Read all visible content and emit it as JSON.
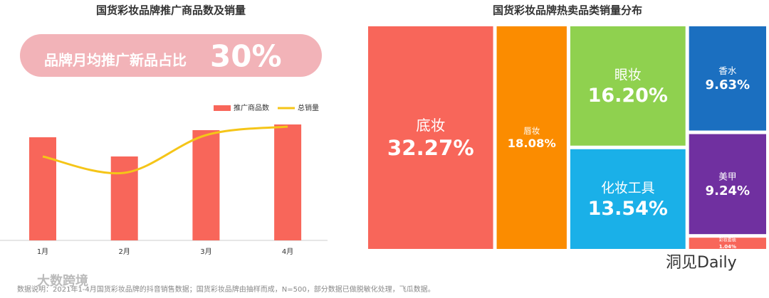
{
  "chart_data": [
    {
      "type": "bar_line",
      "title": "国货彩妆品牌推广商品数及销量",
      "banner": {
        "text": "品牌月均推广新品占比",
        "value": 30,
        "value_label": "30%"
      },
      "categories": [
        "1月",
        "2月",
        "3月",
        "4月"
      ],
      "ylim": [
        0,
        180
      ],
      "series": [
        {
          "name": "推广商品数",
          "kind": "bar",
          "color": "#f8665a",
          "values": [
            145,
            118,
            155,
            163
          ]
        },
        {
          "name": "总销量",
          "kind": "line",
          "color": "#f5c518",
          "values": [
            118,
            95,
            148,
            160
          ]
        }
      ]
    },
    {
      "type": "treemap",
      "title": "国货彩妆品牌热卖品类销量分布",
      "categories": [
        "底妆",
        "唇妆",
        "眼妆",
        "化妆工具",
        "香水",
        "美甲",
        "彩妆套装"
      ],
      "values": [
        32.27,
        18.08,
        16.2,
        13.54,
        9.63,
        9.24,
        1.04
      ],
      "value_labels": [
        "32.27%",
        "18.08%",
        "16.20%",
        "13.54%",
        "9.63%",
        "9.24%",
        "1.04%"
      ],
      "colors": [
        "#f8665a",
        "#fb8c00",
        "#8fd14f",
        "#1ab0e8",
        "#1b6fc0",
        "#7030a0",
        "#f8665a"
      ]
    }
  ],
  "footer": {
    "note": "数据说明：2021年1-4月国货彩妆品牌的抖音销售数据；国货彩妆品牌由抽样而成，N=500，部分数据已做脱敏化处理，飞瓜数据。",
    "watermark": "大数跨境",
    "logo": "洞见Daily"
  }
}
